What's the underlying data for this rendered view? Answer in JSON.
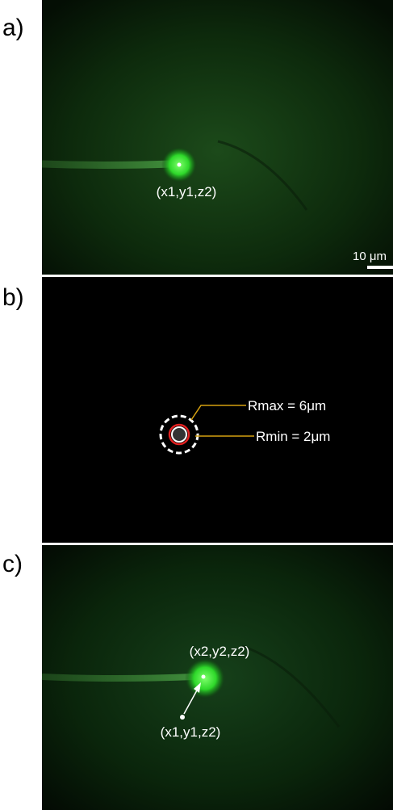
{
  "panels": [
    {
      "label": "a)",
      "point_label": "(x1,y1,z2)",
      "scale_bar": "10 μm"
    },
    {
      "label": "b)",
      "rmax_label": "Rmax = 6μm",
      "rmin_label": "Rmin = 2μm"
    },
    {
      "label": "c)",
      "new_point_label": "(x2,y2,z2)",
      "old_point_label": "(x1,y1,z2)"
    }
  ]
}
